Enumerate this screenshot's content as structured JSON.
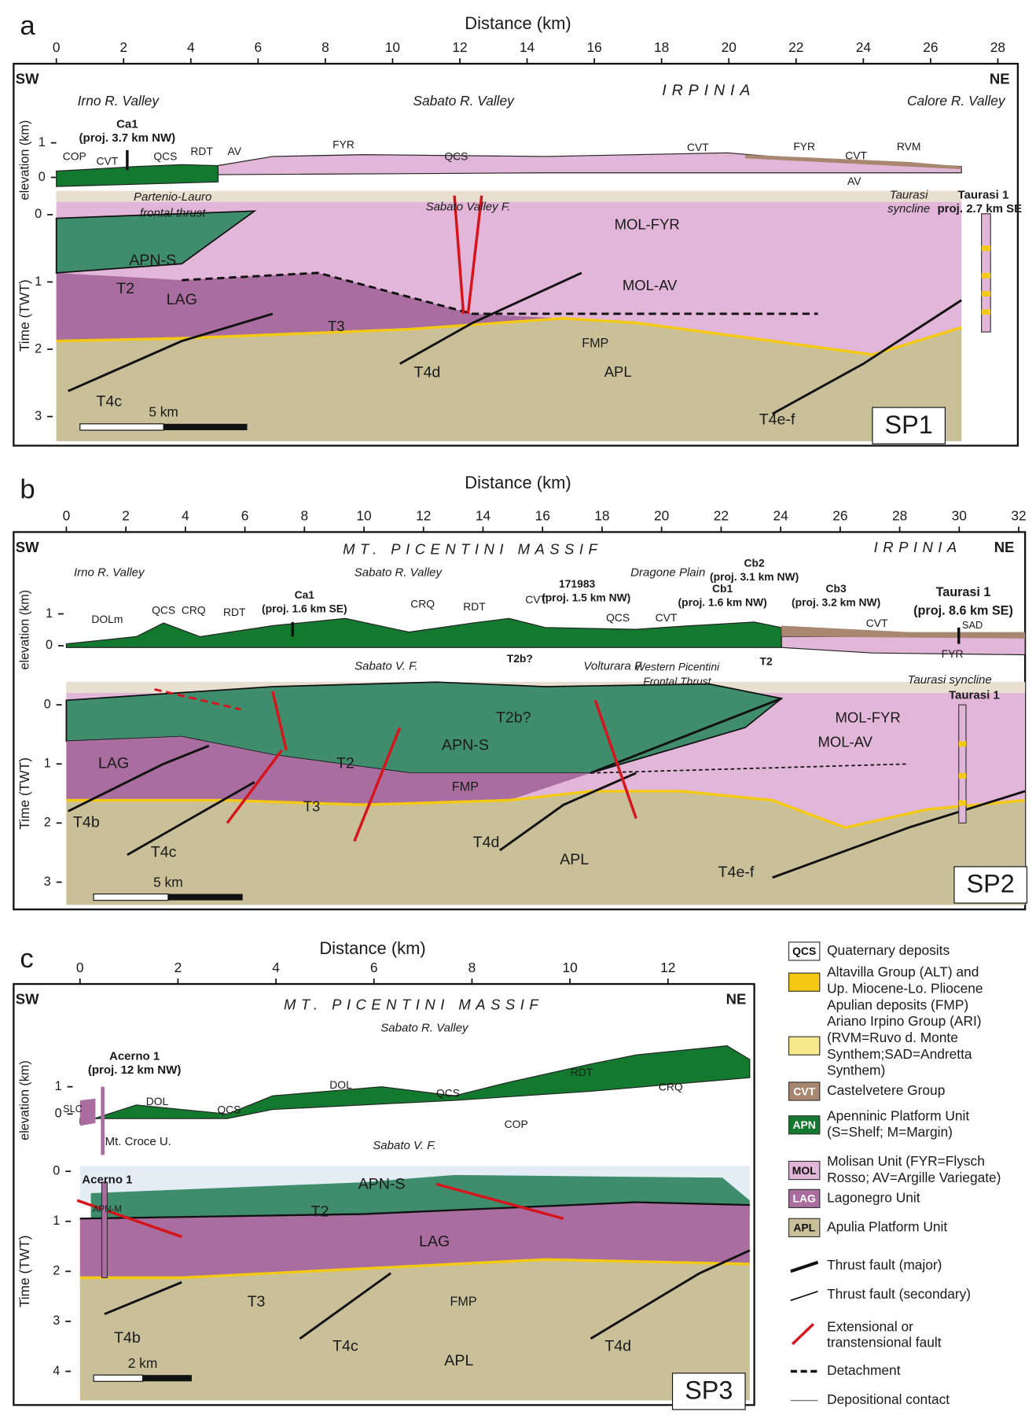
{
  "panels": [
    {
      "letter": "a",
      "axis_title": "Distance (km)",
      "distance_ticks": [
        0,
        2,
        4,
        6,
        8,
        10,
        12,
        14,
        16,
        18,
        20,
        22,
        24,
        26,
        28
      ],
      "elevation_title": "elevation (km)",
      "elevation_ticks": [
        1,
        0
      ],
      "time_title": "Time (TWT)",
      "time_ticks": [
        0,
        1,
        2,
        3
      ],
      "scale_bar": "5 km",
      "section": "SP1",
      "labels": [
        "SW",
        "NE",
        "Irno R. Valley",
        "Sabato R. Valley",
        "IRPINIA",
        "Calore R. Valley",
        "Ca1",
        "(proj. 3.7 km NW)",
        "COP",
        "CVT",
        "QCS",
        "RDT",
        "AV",
        "FYR",
        "QCS",
        "CVT",
        "FYR",
        "CVT",
        "RVM",
        "AV",
        "Partenio-Lauro",
        "frontal thrust",
        "Sabato Valley F.",
        "Taurasi",
        "syncline",
        "Taurasi 1",
        "proj. 2.7 km SE",
        "APN-S",
        "T2",
        "LAG",
        "T3",
        "MOL-FYR",
        "MOL-AV",
        "FMP",
        "APL",
        "T4c",
        "T4d",
        "T4e-f"
      ]
    },
    {
      "letter": "b",
      "axis_title": "Distance (km)",
      "distance_ticks": [
        0,
        2,
        4,
        6,
        8,
        10,
        12,
        14,
        16,
        18,
        20,
        22,
        24,
        26,
        28,
        30,
        32
      ],
      "elevation_title": "elevation (km)",
      "elevation_ticks": [
        1,
        0
      ],
      "time_title": "Time (TWT)",
      "time_ticks": [
        0,
        1,
        2,
        3
      ],
      "scale_bar": "5 km",
      "section": "SP2",
      "labels": [
        "SW",
        "NE",
        "MT. PICENTINI MASSIF",
        "IRPINIA",
        "Irno R. Valley",
        "Sabato R. Valley",
        "Dragone Plain",
        "DOLm",
        "QCS",
        "CRQ",
        "RDT",
        "Ca1",
        "(proj. 1.6 km SE)",
        "CRQ",
        "RDT",
        "CVT",
        "171983",
        "(proj. 1.5 km NW)",
        "QCS",
        "CVT",
        "Cb1",
        "(proj. 1.6 km NW)",
        "Cb2",
        "(proj. 3.1 km NW)",
        "Cb3",
        "(proj. 3.2 km NW)",
        "CVT",
        "Taurasi 1",
        "(proj. 8.6 km SE)",
        "SAD",
        "FYR",
        "Sabato V. F.",
        "T2b?",
        "Volturara F.",
        "Western Picentini",
        "Frontal Thrust",
        "T2",
        "Taurasi syncline",
        "Taurasi 1",
        "APN-S",
        "T2b?",
        "T2",
        "LAG",
        "T3",
        "FMP",
        "T4b",
        "T4c",
        "T4d",
        "APL",
        "MOL-FYR",
        "MOL-AV",
        "T4e-f"
      ]
    },
    {
      "letter": "c",
      "axis_title": "Distance (km)",
      "distance_ticks": [
        0,
        2,
        4,
        6,
        8,
        10,
        12
      ],
      "elevation_title": "elevation (km)",
      "elevation_ticks": [
        1,
        0
      ],
      "time_title": "Time (TWT)",
      "time_ticks": [
        0,
        1,
        2,
        3,
        4
      ],
      "scale_bar": "2 km",
      "section": "SP3",
      "labels": [
        "SW",
        "NE",
        "MT. PICENTINI MASSIF",
        "Sabato R. Valley",
        "Acerno 1",
        "(proj. 12 km NW)",
        "SLC",
        "DOL",
        "QCS",
        "DOL",
        "QCS",
        "RDT",
        "CRQ",
        "COP",
        "Mt. Croce U.",
        "Sabato V. F.",
        "Acerno 1",
        "APN-M",
        "APN-S",
        "T2",
        "LAG",
        "T3",
        "FMP",
        "T4b",
        "T4c",
        "T4d",
        "APL"
      ]
    }
  ],
  "legend": {
    "units": [
      {
        "code": "QCS",
        "lines": [
          "Quaternary deposits"
        ]
      },
      {
        "lines": [
          "Altavilla Group (ALT) and",
          "Up. Miocene-Lo. Pliocene",
          "Apulian deposits (FMP)"
        ]
      },
      {
        "lines": [
          "Ariano Irpino Group (ARI)",
          "(RVM=Ruvo d. Monte",
          "Synthem;SAD=Andretta",
          "Synthem)"
        ]
      },
      {
        "code": "CVT",
        "lines": [
          "Castelvetere Group"
        ]
      },
      {
        "code": "APN",
        "lines": [
          "Apenninic Platform Unit",
          "(S=Shelf; M=Margin)"
        ]
      },
      {
        "code": "MOL",
        "lines": [
          "Molisan Unit (FYR=Flysch",
          "Rosso; AV=Argille Variegate)"
        ]
      },
      {
        "code": "LAG",
        "lines": [
          "Lagonegro Unit"
        ]
      },
      {
        "code": "APL",
        "lines": [
          "Apulia Platform Unit"
        ]
      }
    ],
    "symbols": [
      {
        "lines": [
          "Thrust fault (major)"
        ]
      },
      {
        "lines": [
          "Thrust fault (secondary)"
        ]
      },
      {
        "lines": [
          "Extensional or",
          "transtensional fault"
        ]
      },
      {
        "lines": [
          "Detachment"
        ]
      },
      {
        "lines": [
          "Depositional contact"
        ]
      }
    ]
  }
}
